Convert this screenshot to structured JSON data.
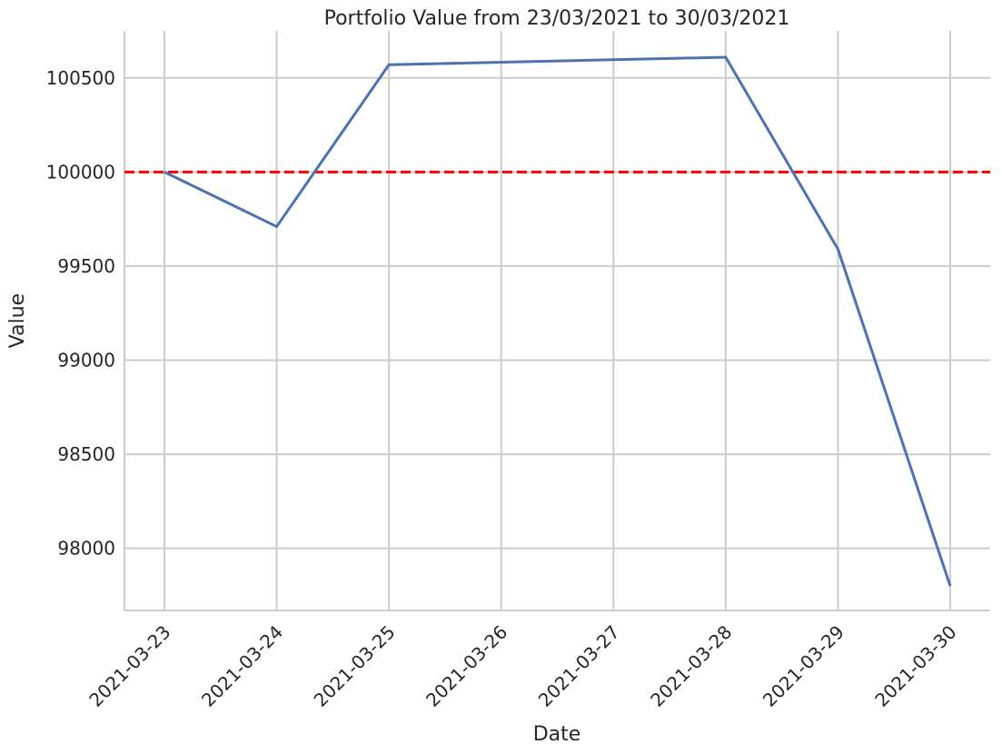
{
  "chart_data": {
    "type": "line",
    "title": "Portfolio Value from 23/03/2021 to 30/03/2021",
    "xlabel": "Date",
    "ylabel": "Value",
    "categories": [
      "2021-03-23",
      "2021-03-24",
      "2021-03-25",
      "2021-03-26",
      "2021-03-27",
      "2021-03-28",
      "2021-03-29",
      "2021-03-30"
    ],
    "series": [
      {
        "name": "Portfolio Value",
        "color": "#4c72b0",
        "x": [
          "2021-03-23",
          "2021-03-24",
          "2021-03-25",
          "2021-03-28",
          "2021-03-29",
          "2021-03-30"
        ],
        "values": [
          100000,
          99710,
          100570,
          100610,
          99590,
          97800
        ]
      }
    ],
    "reference_line": {
      "value": 100000,
      "color": "#ff0000",
      "style": "dashed"
    },
    "yticks": [
      98000,
      98500,
      99000,
      99500,
      100000,
      100500
    ],
    "ylim": [
      97670,
      100750
    ],
    "grid": true
  }
}
